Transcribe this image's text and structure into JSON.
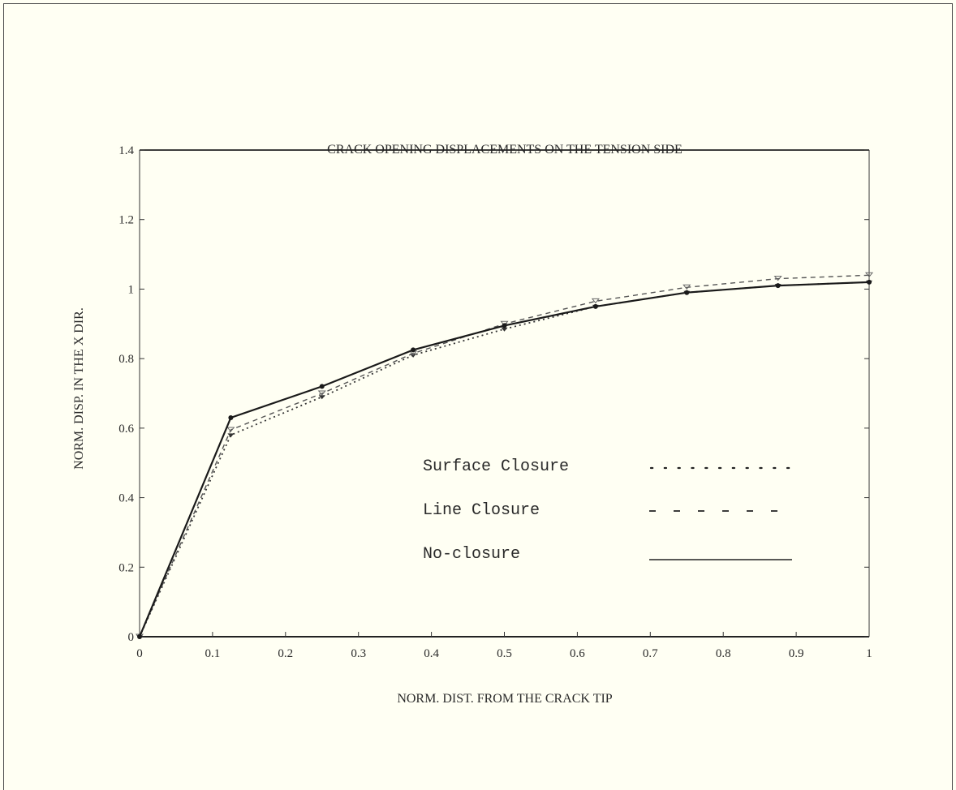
{
  "chart_data": {
    "type": "line",
    "title": "CRACK OPENING DISPLACEMENTS ON THE TENSION SIDE",
    "xlabel": "NORM. DIST. FROM THE CRACK TIP",
    "ylabel": "NORM. DISP. IN THE X DIR.",
    "xlim": [
      0,
      1
    ],
    "ylim": [
      0,
      1.4
    ],
    "x_ticks": [
      "0",
      "0.1",
      "0.2",
      "0.3",
      "0.4",
      "0.5",
      "0.6",
      "0.7",
      "0.8",
      "0.9",
      "1"
    ],
    "y_ticks": [
      "0",
      "0.2",
      "0.4",
      "0.6",
      "0.8",
      "1",
      "1.2",
      "1.4"
    ],
    "grid": false,
    "legend_placement": "center-right",
    "series": [
      {
        "name": "Surface Closure",
        "style": "dotted",
        "x": [
          0,
          0.125,
          0.25,
          0.375,
          0.5,
          0.625,
          0.75,
          0.875,
          1
        ],
        "y": [
          0,
          0.58,
          0.69,
          0.81,
          0.885,
          0.95,
          0.99,
          1.01,
          1.02
        ]
      },
      {
        "name": "Line Closure",
        "style": "dashed",
        "x": [
          0,
          0.125,
          0.25,
          0.375,
          0.5,
          0.625,
          0.75,
          0.875,
          1
        ],
        "y": [
          0,
          0.595,
          0.7,
          0.815,
          0.9,
          0.965,
          1.005,
          1.03,
          1.04
        ]
      },
      {
        "name": "No-closure",
        "style": "solid",
        "x": [
          0,
          0.125,
          0.25,
          0.375,
          0.5,
          0.625,
          0.75,
          0.875,
          1
        ],
        "y": [
          0,
          0.63,
          0.72,
          0.825,
          0.895,
          0.95,
          0.99,
          1.01,
          1.02
        ]
      }
    ]
  }
}
